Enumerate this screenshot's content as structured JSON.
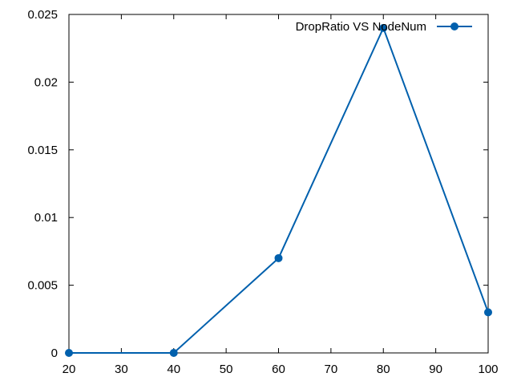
{
  "chart_data": {
    "type": "line",
    "x": [
      20,
      40,
      60,
      80,
      100
    ],
    "series": [
      {
        "name": "DropRatio VS NodeNum",
        "values": [
          0,
          0,
          0.007,
          0.024,
          0.003
        ]
      }
    ],
    "xlim": [
      20,
      100
    ],
    "ylim": [
      0,
      0.025
    ],
    "x_ticks": [
      "20",
      "30",
      "40",
      "50",
      "60",
      "70",
      "80",
      "90",
      "100"
    ],
    "y_ticks": [
      "0",
      "0.005",
      "0.01",
      "0.015",
      "0.02",
      "0.025"
    ],
    "grid": false,
    "legend_position": "top-right",
    "colors": {
      "series": "#0060ad",
      "axis": "#000000"
    }
  }
}
